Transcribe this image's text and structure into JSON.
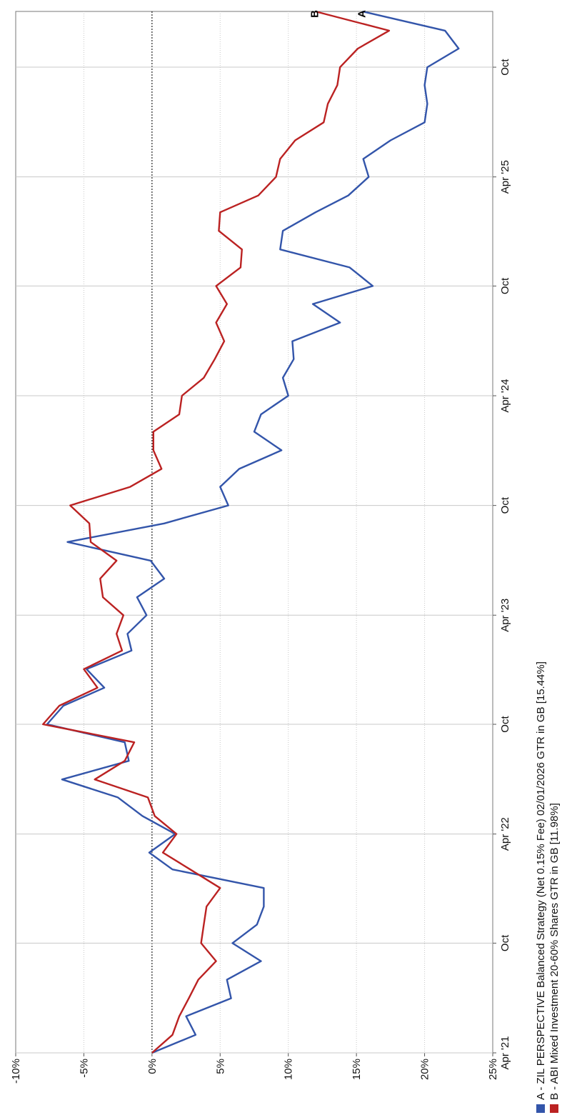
{
  "chart_data": {
    "type": "line",
    "orientation": "rotated-90-ccw",
    "title": "",
    "xlabel": "",
    "ylabel": "",
    "x_tick_labels": [
      "Apr '21",
      "Oct",
      "Apr '22",
      "Oct",
      "Apr '23",
      "Oct",
      "Apr '24",
      "Oct",
      "Apr '25",
      "Oct"
    ],
    "x_tick_dates": [
      "2021-04-01",
      "2021-10-01",
      "2022-04-01",
      "2022-10-01",
      "2023-04-01",
      "2023-10-01",
      "2024-04-01",
      "2024-10-01",
      "2025-04-01",
      "2025-10-01"
    ],
    "y_ticks": [
      -10,
      -5,
      0,
      5,
      10,
      15,
      20,
      25
    ],
    "y_tick_labels": [
      "-10%",
      "-5%",
      "0%",
      "5%",
      "10%",
      "15%",
      "20%",
      "25%"
    ],
    "ylim": [
      -10,
      25
    ],
    "xlim": [
      "2021-04-01",
      "2026-01-02"
    ],
    "grid": true,
    "zero_line": "dotted",
    "series": [
      {
        "name": "A - ZIL PERSPECTIVE Balanced Strategy (Net 0.15% Fee) 02/01/2026 GTR in GB [15.44%]",
        "end_label": "A",
        "color": "#3355aa",
        "x": [
          "2021-04-01",
          "2021-05-01",
          "2021-06-01",
          "2021-07-01",
          "2021-08-01",
          "2021-09-01",
          "2021-10-01",
          "2021-11-01",
          "2021-12-01",
          "2022-01-01",
          "2022-02-01",
          "2022-03-01",
          "2022-04-01",
          "2022-05-01",
          "2022-06-01",
          "2022-07-01",
          "2022-08-01",
          "2022-09-01",
          "2022-10-01",
          "2022-11-01",
          "2022-12-01",
          "2023-01-01",
          "2023-02-01",
          "2023-03-01",
          "2023-04-01",
          "2023-05-01",
          "2023-06-01",
          "2023-07-01",
          "2023-08-01",
          "2023-09-01",
          "2023-10-01",
          "2023-11-01",
          "2023-12-01",
          "2024-01-01",
          "2024-02-01",
          "2024-03-01",
          "2024-04-01",
          "2024-05-01",
          "2024-06-01",
          "2024-07-01",
          "2024-08-01",
          "2024-09-01",
          "2024-10-01",
          "2024-11-01",
          "2024-12-01",
          "2025-01-01",
          "2025-02-01",
          "2025-03-01",
          "2025-04-01",
          "2025-05-01",
          "2025-06-01",
          "2025-07-01",
          "2025-08-01",
          "2025-09-01",
          "2025-10-01",
          "2025-11-01",
          "2025-12-01",
          "2026-01-02"
        ],
        "values": [
          0.0,
          3.2,
          2.5,
          5.8,
          5.5,
          8.0,
          5.9,
          7.7,
          8.2,
          8.2,
          1.5,
          -0.2,
          1.7,
          -0.7,
          -2.5,
          -6.6,
          -1.7,
          -2.0,
          -7.7,
          -6.5,
          -3.5,
          -4.8,
          -1.5,
          -1.8,
          -0.4,
          -1.1,
          0.9,
          -0.1,
          -6.2,
          0.9,
          5.6,
          5.0,
          6.4,
          9.5,
          7.5,
          8.0,
          10.0,
          9.6,
          10.4,
          10.3,
          13.8,
          11.8,
          16.2,
          14.5,
          9.4,
          9.6,
          12.0,
          14.4,
          15.9,
          15.5,
          17.5,
          20.0,
          20.2,
          20.0,
          20.2,
          22.5,
          21.5,
          15.44
        ]
      },
      {
        "name": "B - ABI Mixed Investment 20-60% Shares GTR in GB [11.98%]",
        "end_label": "B",
        "color": "#bb2222",
        "x": [
          "2021-04-01",
          "2021-05-01",
          "2021-06-01",
          "2021-07-01",
          "2021-08-01",
          "2021-09-01",
          "2021-10-01",
          "2021-11-01",
          "2021-12-01",
          "2022-01-01",
          "2022-02-01",
          "2022-03-01",
          "2022-04-01",
          "2022-05-01",
          "2022-06-01",
          "2022-07-01",
          "2022-08-01",
          "2022-09-01",
          "2022-10-01",
          "2022-11-01",
          "2022-12-01",
          "2023-01-01",
          "2023-02-01",
          "2023-03-01",
          "2023-04-01",
          "2023-05-01",
          "2023-06-01",
          "2023-07-01",
          "2023-08-01",
          "2023-09-01",
          "2023-10-01",
          "2023-11-01",
          "2023-12-01",
          "2024-01-01",
          "2024-02-01",
          "2024-03-01",
          "2024-04-01",
          "2024-05-01",
          "2024-06-01",
          "2024-07-01",
          "2024-08-01",
          "2024-09-01",
          "2024-10-01",
          "2024-11-01",
          "2024-12-01",
          "2025-01-01",
          "2025-02-01",
          "2025-03-01",
          "2025-04-01",
          "2025-05-01",
          "2025-06-01",
          "2025-07-01",
          "2025-08-01",
          "2025-09-01",
          "2025-10-01",
          "2025-11-01",
          "2025-12-01",
          "2026-01-02"
        ],
        "values": [
          0.0,
          1.5,
          2.0,
          2.7,
          3.4,
          4.7,
          3.6,
          3.8,
          4.0,
          5.0,
          2.8,
          0.8,
          1.8,
          0.2,
          -0.3,
          -4.2,
          -2.0,
          -1.3,
          -8.0,
          -6.8,
          -4.0,
          -5.0,
          -2.2,
          -2.6,
          -2.1,
          -3.6,
          -3.8,
          -2.6,
          -4.5,
          -4.6,
          -6.0,
          -1.6,
          0.7,
          0.1,
          0.1,
          2.0,
          2.2,
          3.8,
          4.6,
          5.3,
          4.7,
          5.5,
          4.7,
          6.5,
          6.6,
          4.9,
          5.0,
          7.8,
          9.1,
          9.4,
          10.5,
          12.6,
          12.9,
          13.6,
          13.8,
          15.1,
          17.4,
          11.98
        ]
      }
    ]
  }
}
